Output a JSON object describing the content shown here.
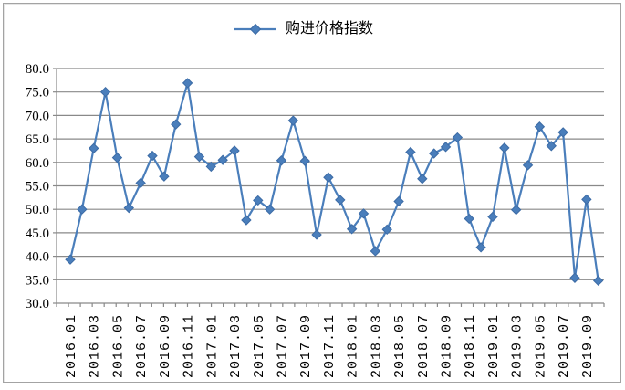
{
  "chart_data": {
    "type": "line",
    "legend": "购进价格指数",
    "legend_position": "top-center",
    "grid": true,
    "ylim": [
      30,
      80
    ],
    "y_tick_step": 5,
    "y_tick_format": "one-decimal",
    "x_label_every": 2,
    "x": [
      "2016.01",
      "2016.02",
      "2016.03",
      "2016.04",
      "2016.05",
      "2016.06",
      "2016.07",
      "2016.08",
      "2016.09",
      "2016.10",
      "2016.11",
      "2016.12",
      "2017.01",
      "2017.02",
      "2017.03",
      "2017.04",
      "2017.05",
      "2017.06",
      "2017.07",
      "2017.08",
      "2017.09",
      "2017.10",
      "2017.11",
      "2017.12",
      "2018.01",
      "2018.02",
      "2018.03",
      "2018.04",
      "2018.05",
      "2018.06",
      "2018.07",
      "2018.08",
      "2018.09",
      "2018.10",
      "2018.11",
      "2018.12",
      "2019.01",
      "2019.02",
      "2019.03",
      "2019.04",
      "2019.05",
      "2019.06",
      "2019.07",
      "2019.08",
      "2019.09",
      "2019.10"
    ],
    "values": [
      39.3,
      50.0,
      63.0,
      75.0,
      61.0,
      50.3,
      55.6,
      61.4,
      57.0,
      68.1,
      76.9,
      61.2,
      59.1,
      60.5,
      62.5,
      47.7,
      51.9,
      50.0,
      60.4,
      68.9,
      60.3,
      44.6,
      56.8,
      52.0,
      45.8,
      49.1,
      41.1,
      45.7,
      51.7,
      62.2,
      56.5,
      61.9,
      63.3,
      65.3,
      48.0,
      41.9,
      48.4,
      63.1,
      49.9,
      59.4,
      67.6,
      63.5,
      66.4,
      35.4,
      52.1,
      34.8
    ],
    "colors": {
      "line": "#4a7ebb",
      "marker_fill": "#4a7ebb",
      "marker_edge": "#3c6ba5",
      "grid": "#898989",
      "axis": "#898989",
      "text": "#000000",
      "frame_border": "#a3a3a3"
    }
  }
}
